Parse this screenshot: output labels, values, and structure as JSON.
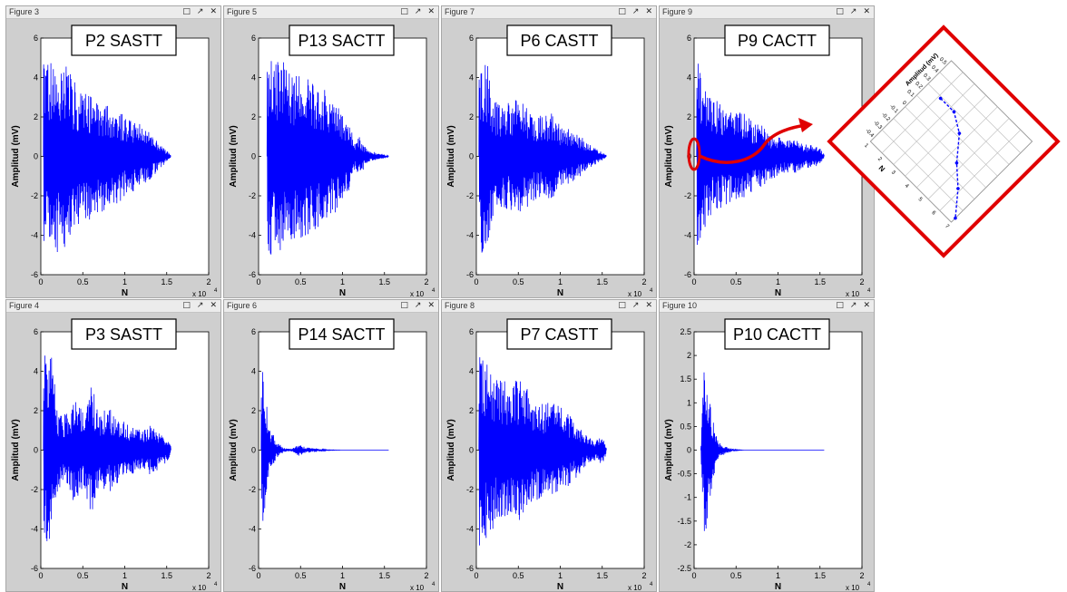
{
  "figures": [
    {
      "window_title": "Figure 3",
      "chart_data": {
        "type": "line",
        "title": "P2 SASTT",
        "xlabel": "N",
        "ylabel": "Amplitud (mV)",
        "x_exponent": "x 10",
        "x_exponent_power": "4",
        "xlim": [
          0,
          2
        ],
        "ylim": [
          -6,
          6
        ],
        "xticks": [
          "0",
          "0.5",
          "1",
          "1.5",
          "2"
        ],
        "yticks": [
          "-6",
          "-4",
          "-2",
          "0",
          "2",
          "4",
          "6"
        ],
        "series_color": "#0000ff",
        "envelope": [
          {
            "x": 0.03,
            "a": 5.0
          },
          {
            "x": 0.1,
            "a": 5.0
          },
          {
            "x": 0.2,
            "a": 5.0
          },
          {
            "x": 0.3,
            "a": 4.6
          },
          {
            "x": 0.4,
            "a": 3.8
          },
          {
            "x": 0.5,
            "a": 3.2
          },
          {
            "x": 0.6,
            "a": 3.2
          },
          {
            "x": 0.7,
            "a": 2.9
          },
          {
            "x": 0.8,
            "a": 2.6
          },
          {
            "x": 0.9,
            "a": 2.5
          },
          {
            "x": 1.0,
            "a": 2.0
          },
          {
            "x": 1.1,
            "a": 1.8
          },
          {
            "x": 1.2,
            "a": 1.6
          },
          {
            "x": 1.3,
            "a": 1.2
          },
          {
            "x": 1.4,
            "a": 0.7
          },
          {
            "x": 1.5,
            "a": 0.3
          },
          {
            "x": 1.55,
            "a": 0.05
          }
        ]
      }
    },
    {
      "window_title": "Figure 5",
      "chart_data": {
        "type": "line",
        "title": "P13 SACTT",
        "xlabel": "N",
        "ylabel": "Amplitud (mV)",
        "x_exponent": "x 10",
        "x_exponent_power": "4",
        "xlim": [
          0,
          2
        ],
        "ylim": [
          -6,
          6
        ],
        "xticks": [
          "0",
          "0.5",
          "1",
          "1.5",
          "2"
        ],
        "yticks": [
          "-6",
          "-4",
          "-2",
          "0",
          "2",
          "4",
          "6"
        ],
        "series_color": "#0000ff",
        "envelope": [
          {
            "x": 0.1,
            "a": 5.0
          },
          {
            "x": 0.2,
            "a": 5.0
          },
          {
            "x": 0.3,
            "a": 4.8
          },
          {
            "x": 0.4,
            "a": 4.5
          },
          {
            "x": 0.5,
            "a": 4.3
          },
          {
            "x": 0.6,
            "a": 4.0
          },
          {
            "x": 0.7,
            "a": 3.8
          },
          {
            "x": 0.8,
            "a": 3.4
          },
          {
            "x": 0.9,
            "a": 3.0
          },
          {
            "x": 1.0,
            "a": 2.2
          },
          {
            "x": 1.1,
            "a": 1.6
          },
          {
            "x": 1.15,
            "a": 0.6
          },
          {
            "x": 1.2,
            "a": 1.0
          },
          {
            "x": 1.3,
            "a": 0.3
          },
          {
            "x": 1.5,
            "a": 0.1
          },
          {
            "x": 1.55,
            "a": 0.02
          }
        ]
      }
    },
    {
      "window_title": "Figure 7",
      "chart_data": {
        "type": "line",
        "title": "P6 CASTT",
        "xlabel": "N",
        "ylabel": "Amplitud (mV)",
        "x_exponent": "x 10",
        "x_exponent_power": "4",
        "xlim": [
          0,
          2
        ],
        "ylim": [
          -6,
          6
        ],
        "xticks": [
          "0",
          "0.5",
          "1",
          "1.5",
          "2"
        ],
        "yticks": [
          "-6",
          "-4",
          "-2",
          "0",
          "2",
          "4",
          "6"
        ],
        "series_color": "#0000ff",
        "envelope": [
          {
            "x": 0.03,
            "a": 5.0
          },
          {
            "x": 0.12,
            "a": 5.0
          },
          {
            "x": 0.2,
            "a": 3.0
          },
          {
            "x": 0.3,
            "a": 2.6
          },
          {
            "x": 0.4,
            "a": 2.8
          },
          {
            "x": 0.5,
            "a": 3.0
          },
          {
            "x": 0.6,
            "a": 2.6
          },
          {
            "x": 0.7,
            "a": 2.2
          },
          {
            "x": 0.8,
            "a": 2.0
          },
          {
            "x": 0.9,
            "a": 2.2
          },
          {
            "x": 1.0,
            "a": 1.6
          },
          {
            "x": 1.1,
            "a": 1.4
          },
          {
            "x": 1.2,
            "a": 1.2
          },
          {
            "x": 1.3,
            "a": 0.8
          },
          {
            "x": 1.4,
            "a": 0.5
          },
          {
            "x": 1.5,
            "a": 0.2
          },
          {
            "x": 1.55,
            "a": 0.05
          }
        ]
      }
    },
    {
      "window_title": "Figure 9",
      "chart_data": {
        "type": "line",
        "title": "P9 CACTT",
        "xlabel": "N",
        "ylabel": "Amplitud (mV)",
        "x_exponent": "x 10",
        "x_exponent_power": "4",
        "xlim": [
          0,
          2
        ],
        "ylim": [
          -6,
          6
        ],
        "xticks": [
          "0",
          "0.5",
          "1",
          "1.5",
          "2"
        ],
        "yticks": [
          "-6",
          "-4",
          "-2",
          "0",
          "2",
          "4",
          "6"
        ],
        "series_color": "#0000ff",
        "envelope": [
          {
            "x": 0.03,
            "a": 5.0
          },
          {
            "x": 0.1,
            "a": 4.0
          },
          {
            "x": 0.2,
            "a": 3.0
          },
          {
            "x": 0.3,
            "a": 2.8
          },
          {
            "x": 0.4,
            "a": 2.4
          },
          {
            "x": 0.5,
            "a": 2.2
          },
          {
            "x": 0.6,
            "a": 2.3
          },
          {
            "x": 0.7,
            "a": 1.8
          },
          {
            "x": 0.8,
            "a": 1.6
          },
          {
            "x": 0.9,
            "a": 1.2
          },
          {
            "x": 1.0,
            "a": 1.0
          },
          {
            "x": 1.1,
            "a": 0.8
          },
          {
            "x": 1.2,
            "a": 0.9
          },
          {
            "x": 1.3,
            "a": 0.6
          },
          {
            "x": 1.4,
            "a": 0.6
          },
          {
            "x": 1.5,
            "a": 0.4
          },
          {
            "x": 1.55,
            "a": 0.1
          }
        ]
      }
    },
    {
      "window_title": "Figure 4",
      "chart_data": {
        "type": "line",
        "title": "P3 SASTT",
        "xlabel": "N",
        "ylabel": "Amplitud (mV)",
        "x_exponent": "x 10",
        "x_exponent_power": "4",
        "xlim": [
          0,
          2
        ],
        "ylim": [
          -6,
          6
        ],
        "xticks": [
          "0",
          "0.5",
          "1",
          "1.5",
          "2"
        ],
        "yticks": [
          "-6",
          "-4",
          "-2",
          "0",
          "2",
          "4",
          "6"
        ],
        "series_color": "#0000ff",
        "envelope": [
          {
            "x": 0.03,
            "a": 5.0
          },
          {
            "x": 0.12,
            "a": 5.0
          },
          {
            "x": 0.2,
            "a": 2.0
          },
          {
            "x": 0.3,
            "a": 1.8
          },
          {
            "x": 0.4,
            "a": 2.8
          },
          {
            "x": 0.5,
            "a": 2.0
          },
          {
            "x": 0.6,
            "a": 3.4
          },
          {
            "x": 0.7,
            "a": 1.8
          },
          {
            "x": 0.8,
            "a": 2.2
          },
          {
            "x": 0.9,
            "a": 1.8
          },
          {
            "x": 1.0,
            "a": 1.4
          },
          {
            "x": 1.1,
            "a": 1.2
          },
          {
            "x": 1.2,
            "a": 1.0
          },
          {
            "x": 1.3,
            "a": 1.3
          },
          {
            "x": 1.4,
            "a": 1.0
          },
          {
            "x": 1.5,
            "a": 0.6
          },
          {
            "x": 1.55,
            "a": 0.2
          }
        ]
      }
    },
    {
      "window_title": "Figure 6",
      "chart_data": {
        "type": "line",
        "title": "P14 SACTT",
        "xlabel": "N",
        "ylabel": "Amplitud (mV)",
        "x_exponent": "x 10",
        "x_exponent_power": "4",
        "xlim": [
          0,
          2
        ],
        "ylim": [
          -6,
          6
        ],
        "xticks": [
          "0",
          "0.5",
          "1",
          "1.5",
          "2"
        ],
        "yticks": [
          "-6",
          "-4",
          "-2",
          "0",
          "2",
          "4",
          "6"
        ],
        "series_color": "#0000ff",
        "envelope": [
          {
            "x": 0.03,
            "a": 5.0
          },
          {
            "x": 0.08,
            "a": 3.0
          },
          {
            "x": 0.13,
            "a": 1.4
          },
          {
            "x": 0.2,
            "a": 0.5
          },
          {
            "x": 0.3,
            "a": 0.1
          },
          {
            "x": 0.4,
            "a": 0.05
          },
          {
            "x": 0.48,
            "a": 0.35
          },
          {
            "x": 0.55,
            "a": 0.15
          },
          {
            "x": 0.7,
            "a": 0.08
          },
          {
            "x": 0.8,
            "a": 0.02
          },
          {
            "x": 1.0,
            "a": 0.0
          },
          {
            "x": 1.55,
            "a": 0.0
          }
        ]
      }
    },
    {
      "window_title": "Figure 8",
      "chart_data": {
        "type": "line",
        "title": "P7 CASTT",
        "xlabel": "N",
        "ylabel": "Amplitud (mV)",
        "x_exponent": "x 10",
        "x_exponent_power": "4",
        "xlim": [
          0,
          2
        ],
        "ylim": [
          -6,
          6
        ],
        "xticks": [
          "0",
          "0.5",
          "1",
          "1.5",
          "2"
        ],
        "yticks": [
          "-6",
          "-4",
          "-2",
          "0",
          "2",
          "4",
          "6"
        ],
        "series_color": "#0000ff",
        "envelope": [
          {
            "x": 0.03,
            "a": 5.0
          },
          {
            "x": 0.1,
            "a": 4.6
          },
          {
            "x": 0.2,
            "a": 4.0
          },
          {
            "x": 0.3,
            "a": 3.6
          },
          {
            "x": 0.4,
            "a": 3.4
          },
          {
            "x": 0.5,
            "a": 3.6
          },
          {
            "x": 0.6,
            "a": 3.2
          },
          {
            "x": 0.7,
            "a": 2.6
          },
          {
            "x": 0.8,
            "a": 2.4
          },
          {
            "x": 0.9,
            "a": 2.4
          },
          {
            "x": 1.0,
            "a": 2.2
          },
          {
            "x": 1.1,
            "a": 1.8
          },
          {
            "x": 1.2,
            "a": 1.4
          },
          {
            "x": 1.3,
            "a": 0.8
          },
          {
            "x": 1.4,
            "a": 0.5
          },
          {
            "x": 1.5,
            "a": 0.8
          },
          {
            "x": 1.55,
            "a": 0.2
          }
        ]
      }
    },
    {
      "window_title": "Figure 10",
      "chart_data": {
        "type": "line",
        "title": "P10 CACTT",
        "xlabel": "N",
        "ylabel": "Amplitud (mV)",
        "x_exponent": "x 10",
        "x_exponent_power": "4",
        "xlim": [
          0,
          2
        ],
        "ylim": [
          -2.5,
          2.5
        ],
        "xticks": [
          "0",
          "0.5",
          "1",
          "1.5",
          "2"
        ],
        "yticks": [
          "-2.5",
          "-2",
          "-1.5",
          "-1",
          "-0.5",
          "0",
          "0.5",
          "1",
          "1.5",
          "2",
          "2.5"
        ],
        "series_color": "#0000ff",
        "envelope": [
          {
            "x": 0.08,
            "a": 0.05
          },
          {
            "x": 0.12,
            "a": 2.0
          },
          {
            "x": 0.16,
            "a": 1.6
          },
          {
            "x": 0.2,
            "a": 0.9
          },
          {
            "x": 0.25,
            "a": 0.4
          },
          {
            "x": 0.3,
            "a": 0.15
          },
          {
            "x": 0.4,
            "a": 0.06
          },
          {
            "x": 0.5,
            "a": 0.01
          },
          {
            "x": 0.6,
            "a": 0.0
          },
          {
            "x": 1.55,
            "a": 0.0
          }
        ]
      }
    }
  ],
  "window_buttons": {
    "restore": "□",
    "undock": "↗",
    "close": "✕"
  },
  "zoom_inset": {
    "chart_data": {
      "type": "line",
      "ylabel": "Amplitud (mV)",
      "xlabel": "N",
      "yticks": [
        "0.5",
        "0.4",
        "0.3",
        "0.2",
        "0.1",
        "0",
        "-0.1",
        "-0.2",
        "-0.3",
        "-0.4"
      ],
      "xticks": [
        "1",
        "2",
        "3",
        "4",
        "5",
        "6",
        "7"
      ],
      "series": [
        {
          "x": [
            2,
            3,
            4,
            5,
            6,
            7
          ],
          "y": [
            0.25,
            0.25,
            0.15,
            -0.05,
            -0.2,
            -0.4
          ]
        }
      ],
      "series_color": "#0000ff",
      "frame_color": "#e00000"
    }
  },
  "annotation": {
    "color": "#e00000"
  }
}
